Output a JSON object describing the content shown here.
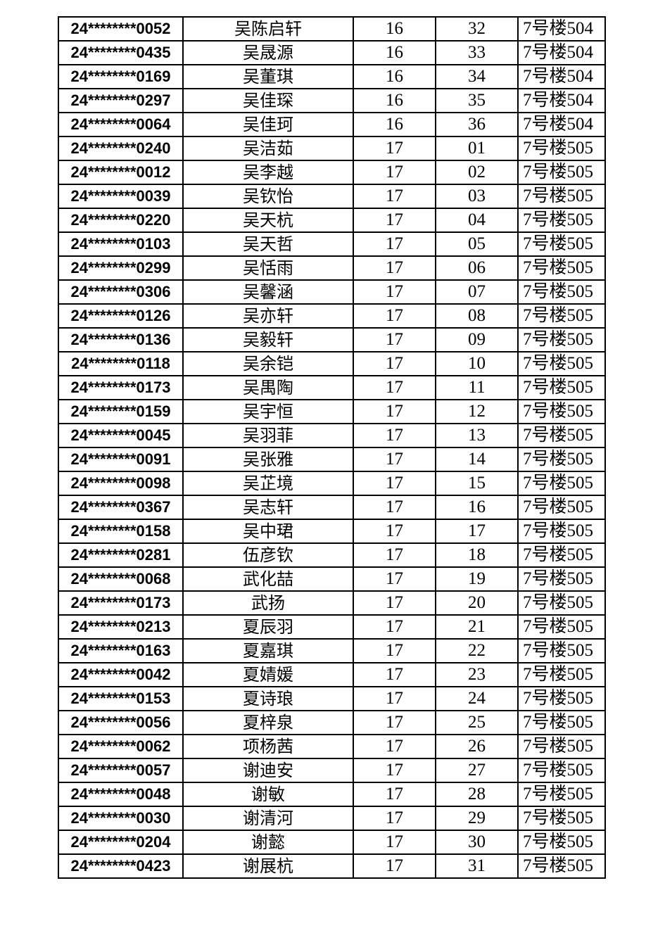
{
  "table": {
    "rows": [
      {
        "id": "24********0052",
        "name": "吴陈启轩",
        "group": "16",
        "seat": "32",
        "room": "7号楼504"
      },
      {
        "id": "24********0435",
        "name": "吴晟源",
        "group": "16",
        "seat": "33",
        "room": "7号楼504"
      },
      {
        "id": "24********0169",
        "name": "吴董琪",
        "group": "16",
        "seat": "34",
        "room": "7号楼504"
      },
      {
        "id": "24********0297",
        "name": "吴佳琛",
        "group": "16",
        "seat": "35",
        "room": "7号楼504"
      },
      {
        "id": "24********0064",
        "name": "吴佳珂",
        "group": "16",
        "seat": "36",
        "room": "7号楼504"
      },
      {
        "id": "24********0240",
        "name": "吴洁茹",
        "group": "17",
        "seat": "01",
        "room": "7号楼505"
      },
      {
        "id": "24********0012",
        "name": "吴李越",
        "group": "17",
        "seat": "02",
        "room": "7号楼505"
      },
      {
        "id": "24********0039",
        "name": "吴钦怡",
        "group": "17",
        "seat": "03",
        "room": "7号楼505"
      },
      {
        "id": "24********0220",
        "name": "吴天杭",
        "group": "17",
        "seat": "04",
        "room": "7号楼505"
      },
      {
        "id": "24********0103",
        "name": "吴天哲",
        "group": "17",
        "seat": "05",
        "room": "7号楼505"
      },
      {
        "id": "24********0299",
        "name": "吴恬雨",
        "group": "17",
        "seat": "06",
        "room": "7号楼505"
      },
      {
        "id": "24********0306",
        "name": "吴馨涵",
        "group": "17",
        "seat": "07",
        "room": "7号楼505"
      },
      {
        "id": "24********0126",
        "name": "吴亦轩",
        "group": "17",
        "seat": "08",
        "room": "7号楼505"
      },
      {
        "id": "24********0136",
        "name": "吴毅轩",
        "group": "17",
        "seat": "09",
        "room": "7号楼505"
      },
      {
        "id": "24********0118",
        "name": "吴余铠",
        "group": "17",
        "seat": "10",
        "room": "7号楼505"
      },
      {
        "id": "24********0173",
        "name": "吴禺陶",
        "group": "17",
        "seat": "11",
        "room": "7号楼505"
      },
      {
        "id": "24********0159",
        "name": "吴宇恒",
        "group": "17",
        "seat": "12",
        "room": "7号楼505"
      },
      {
        "id": "24********0045",
        "name": "吴羽菲",
        "group": "17",
        "seat": "13",
        "room": "7号楼505"
      },
      {
        "id": "24********0091",
        "name": "吴张雅",
        "group": "17",
        "seat": "14",
        "room": "7号楼505"
      },
      {
        "id": "24********0098",
        "name": "吴芷境",
        "group": "17",
        "seat": "15",
        "room": "7号楼505"
      },
      {
        "id": "24********0367",
        "name": "吴志轩",
        "group": "17",
        "seat": "16",
        "room": "7号楼505"
      },
      {
        "id": "24********0158",
        "name": "吴中珺",
        "group": "17",
        "seat": "17",
        "room": "7号楼505"
      },
      {
        "id": "24********0281",
        "name": "伍彦钦",
        "group": "17",
        "seat": "18",
        "room": "7号楼505"
      },
      {
        "id": "24********0068",
        "name": "武化喆",
        "group": "17",
        "seat": "19",
        "room": "7号楼505"
      },
      {
        "id": "24********0173",
        "name": "武扬",
        "group": "17",
        "seat": "20",
        "room": "7号楼505"
      },
      {
        "id": "24********0213",
        "name": "夏辰羽",
        "group": "17",
        "seat": "21",
        "room": "7号楼505"
      },
      {
        "id": "24********0163",
        "name": "夏嘉琪",
        "group": "17",
        "seat": "22",
        "room": "7号楼505"
      },
      {
        "id": "24********0042",
        "name": "夏婧媛",
        "group": "17",
        "seat": "23",
        "room": "7号楼505"
      },
      {
        "id": "24********0153",
        "name": "夏诗琅",
        "group": "17",
        "seat": "24",
        "room": "7号楼505"
      },
      {
        "id": "24********0056",
        "name": "夏梓泉",
        "group": "17",
        "seat": "25",
        "room": "7号楼505"
      },
      {
        "id": "24********0062",
        "name": "项杨茜",
        "group": "17",
        "seat": "26",
        "room": "7号楼505"
      },
      {
        "id": "24********0057",
        "name": "谢迪安",
        "group": "17",
        "seat": "27",
        "room": "7号楼505"
      },
      {
        "id": "24********0048",
        "name": "谢敏",
        "group": "17",
        "seat": "28",
        "room": "7号楼505"
      },
      {
        "id": "24********0030",
        "name": "谢清河",
        "group": "17",
        "seat": "29",
        "room": "7号楼505"
      },
      {
        "id": "24********0204",
        "name": "谢懿",
        "group": "17",
        "seat": "30",
        "room": "7号楼505"
      },
      {
        "id": "24********0423",
        "name": "谢展杭",
        "group": "17",
        "seat": "31",
        "room": "7号楼505"
      }
    ]
  }
}
